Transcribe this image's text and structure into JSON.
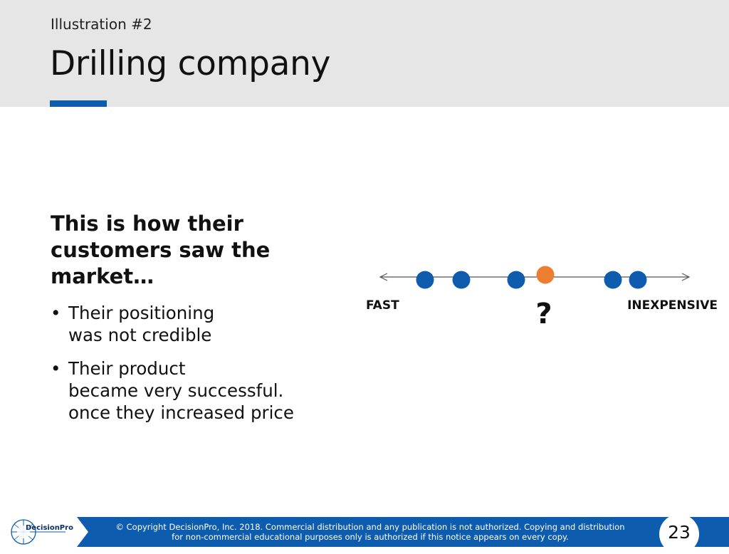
{
  "header": {
    "subtitle": "Illustration #2",
    "title": "Drilling company"
  },
  "content": {
    "heading_lines": [
      "This is how their",
      "customers saw the",
      "market…"
    ],
    "bullets": [
      {
        "lines": [
          "Their positioning",
          "was not credible"
        ]
      },
      {
        "lines": [
          "Their product",
          "became very successful.",
          "once they increased price"
        ]
      }
    ]
  },
  "diagram": {
    "left_label": "FAST",
    "right_label": "INEXPENSIVE",
    "marker_label": "?",
    "colors": {
      "competitor": "#0e5cad",
      "company": "#ed7d31",
      "axis": "#555555"
    }
  },
  "footer": {
    "logo_text": "DecisionPro",
    "copyright_lines": [
      "© Copyright DecisionPro, Inc.  2018. Commercial distribution and any publication is not authorized. Copying and distribution",
      "for non-commercial educational purposes only is authorized if this notice appears on every copy."
    ],
    "page_number": "23"
  },
  "colors": {
    "accent": "#0e5cad",
    "header_bg": "#e6e6e7"
  }
}
